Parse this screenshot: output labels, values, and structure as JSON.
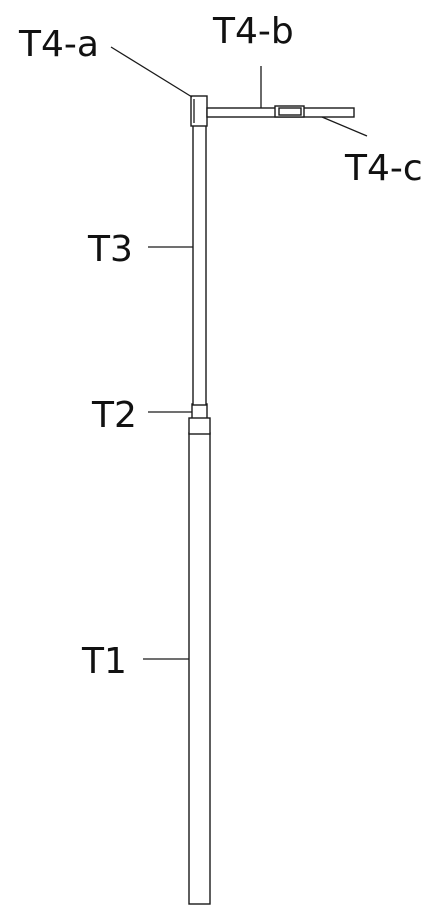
{
  "labels": {
    "t4a": "T4-a",
    "t4b": "T4-b",
    "t4c": "T4-c",
    "t3": "T3",
    "t2": "T2",
    "t1": "T1"
  },
  "colors": {
    "line": "#1a1a1a",
    "background": "#ffffff"
  }
}
